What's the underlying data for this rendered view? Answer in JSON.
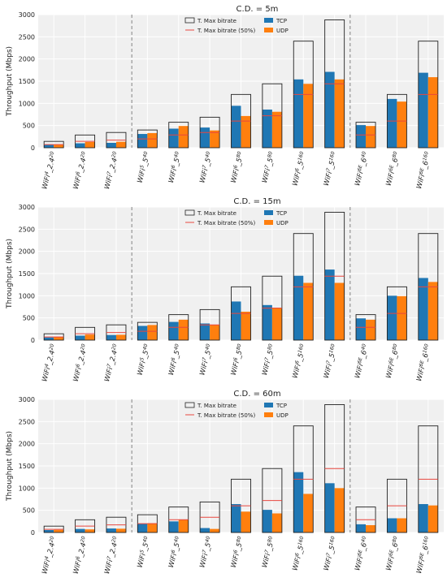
{
  "colors": {
    "tcp": "#1f77b4",
    "udp": "#ff7f0e",
    "half": "#e8473f",
    "panel_bg": "#f0f0f0",
    "grid": "#ffffff",
    "separator": "#777777"
  },
  "legend": {
    "max": "T. Max bitrate",
    "half": "T. Max bitrate (50%)",
    "tcp": "TCP",
    "udp": "UDP"
  },
  "categories": [
    {
      "base": "WiFi",
      "std": "4",
      "band": "_2.4",
      "bw": "20"
    },
    {
      "base": "WiFi",
      "std": "6",
      "band": "_2.4",
      "bw": "20"
    },
    {
      "base": "WiFi",
      "std": "7",
      "band": "_2.4",
      "bw": "20"
    },
    {
      "base": "WiFi",
      "std": "5",
      "band": "_5",
      "bw": "40"
    },
    {
      "base": "WiFi",
      "std": "6",
      "band": "_5",
      "bw": "40"
    },
    {
      "base": "WiFi",
      "std": "7",
      "band": "_5",
      "bw": "40"
    },
    {
      "base": "WiFi",
      "std": "6",
      "band": "_5",
      "bw": "80"
    },
    {
      "base": "WiFi",
      "std": "7",
      "band": "_5",
      "bw": "80"
    },
    {
      "base": "WiFi",
      "std": "6",
      "band": "_5",
      "bw": "160"
    },
    {
      "base": "WiFi",
      "std": "7",
      "band": "_5",
      "bw": "160"
    },
    {
      "base": "WiFi",
      "std": "6E",
      "band": "_6",
      "bw": "40"
    },
    {
      "base": "WiFi",
      "std": "6E",
      "band": "_6",
      "bw": "80"
    },
    {
      "base": "WiFi",
      "std": "6E",
      "band": "_6",
      "bw": "160"
    }
  ],
  "separators_after_index": [
    2,
    9
  ],
  "chart_data": [
    {
      "type": "bar",
      "title": "C.D. = 5m",
      "ylabel": "Throughput (Mbps)",
      "ylim": [
        0,
        3000
      ],
      "yticks": [
        0,
        500,
        1000,
        1500,
        2000,
        2500,
        3000
      ],
      "max_bitrate": [
        143,
        287,
        344,
        400,
        574,
        688,
        1201,
        1441,
        2402,
        2882,
        574,
        1201,
        2402
      ],
      "series": [
        {
          "name": "TCP",
          "values": [
            65,
            100,
            110,
            310,
            430,
            455,
            945,
            860,
            1540,
            1710,
            510,
            1100,
            1690
          ]
        },
        {
          "name": "UDP",
          "values": [
            72,
            130,
            135,
            330,
            490,
            390,
            715,
            810,
            1440,
            1540,
            490,
            1040,
            1590
          ]
        }
      ]
    },
    {
      "type": "bar",
      "title": "C.D. = 15m",
      "ylabel": "Throughput (Mbps)",
      "ylim": [
        0,
        3000
      ],
      "yticks": [
        0,
        500,
        1000,
        1500,
        2000,
        2500,
        3000
      ],
      "max_bitrate": [
        143,
        287,
        344,
        400,
        574,
        688,
        1201,
        1441,
        2402,
        2882,
        574,
        1201,
        2402
      ],
      "series": [
        {
          "name": "TCP",
          "values": [
            60,
            100,
            115,
            320,
            410,
            375,
            870,
            790,
            1450,
            1590,
            490,
            1000,
            1400
          ]
        },
        {
          "name": "UDP",
          "values": [
            72,
            125,
            120,
            340,
            460,
            345,
            640,
            730,
            1290,
            1290,
            460,
            990,
            1310
          ]
        }
      ]
    },
    {
      "type": "bar",
      "title": "C.D. = 60m",
      "ylabel": "Throughput (Mbps)",
      "ylim": [
        0,
        3000
      ],
      "yticks": [
        0,
        500,
        1000,
        1500,
        2000,
        2500,
        3000
      ],
      "max_bitrate": [
        143,
        287,
        344,
        400,
        574,
        688,
        1201,
        1441,
        2402,
        2882,
        574,
        1201,
        2402
      ],
      "series": [
        {
          "name": "TCP",
          "values": [
            55,
            80,
            90,
            200,
            250,
            100,
            640,
            510,
            1360,
            1110,
            185,
            320,
            640
          ]
        },
        {
          "name": "UDP",
          "values": [
            60,
            70,
            85,
            210,
            290,
            80,
            470,
            430,
            870,
            1000,
            165,
            320,
            610
          ]
        }
      ]
    }
  ]
}
